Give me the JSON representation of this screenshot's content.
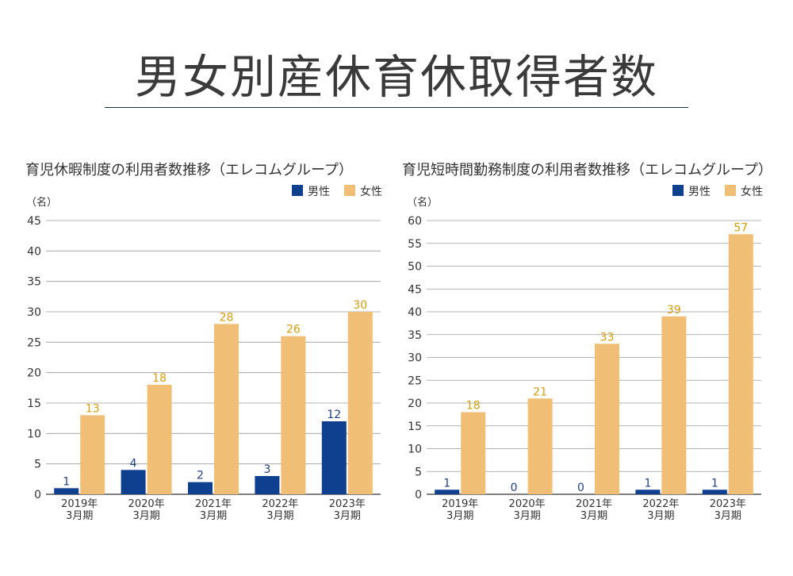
{
  "page": {
    "title": "男女別産休育休取得者数"
  },
  "colors": {
    "male": "#0f3f8f",
    "female": "#f0be74",
    "female_label": "#d49c10",
    "male_label": "#1f3f80",
    "grid": "#9a9a9a",
    "axis": "#333333"
  },
  "chart_data": [
    {
      "type": "bar",
      "title": "育児休暇制度の利用者数推移（エレコムグループ）",
      "ylabel": "（名）",
      "ylim": [
        0,
        45
      ],
      "yticks": [
        0,
        5,
        10,
        15,
        20,
        25,
        30,
        35,
        40,
        45
      ],
      "grid": true,
      "legend": "top-right",
      "categories": [
        "2019年\n3月期",
        "2020年\n3月期",
        "2021年\n3月期",
        "2022年\n3月期",
        "2023年\n3月期"
      ],
      "series": [
        {
          "name": "男性",
          "values": [
            1,
            4,
            2,
            3,
            12
          ]
        },
        {
          "name": "女性",
          "values": [
            13,
            18,
            28,
            26,
            30
          ]
        }
      ]
    },
    {
      "type": "bar",
      "title": "育児短時間勤務制度の利用者数推移（エレコムグループ）",
      "ylabel": "（名）",
      "ylim": [
        0,
        60
      ],
      "yticks": [
        0,
        5,
        10,
        15,
        20,
        25,
        30,
        35,
        40,
        45,
        50,
        55,
        60
      ],
      "grid": true,
      "legend": "top-right",
      "categories": [
        "2019年\n3月期",
        "2020年\n3月期",
        "2021年\n3月期",
        "2022年\n3月期",
        "2023年\n3月期"
      ],
      "series": [
        {
          "name": "男性",
          "values": [
            1,
            0,
            0,
            1,
            1
          ]
        },
        {
          "name": "女性",
          "values": [
            18,
            21,
            33,
            39,
            57
          ]
        }
      ]
    }
  ]
}
